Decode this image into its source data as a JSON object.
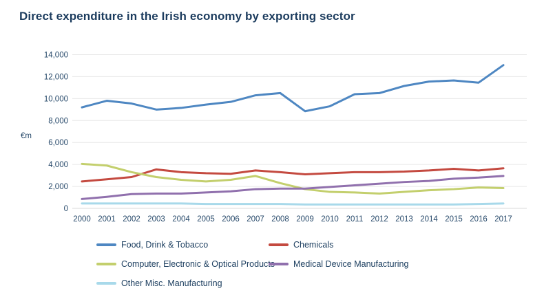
{
  "title": "Direct expenditure in the Irish economy by exporting sector",
  "chart_data": {
    "type": "line",
    "title": "Direct expenditure in the Irish economy by exporting sector",
    "xlabel": "",
    "ylabel": "€m",
    "x": [
      2000,
      2001,
      2002,
      2003,
      2004,
      2005,
      2006,
      2007,
      2008,
      2009,
      2010,
      2011,
      2012,
      2013,
      2014,
      2015,
      2016,
      2017
    ],
    "series": [
      {
        "name": "Food, Drink & Tobacco",
        "color": "#4e87c2",
        "values": [
          9200,
          9800,
          9550,
          9000,
          9150,
          9450,
          9700,
          10300,
          10500,
          8850,
          9300,
          10400,
          10500,
          11150,
          11550,
          11650,
          11450,
          13050
        ]
      },
      {
        "name": "Chemicals",
        "color": "#c44a40",
        "values": [
          2450,
          2650,
          2850,
          3550,
          3300,
          3200,
          3150,
          3450,
          3300,
          3100,
          3200,
          3300,
          3300,
          3350,
          3450,
          3600,
          3450,
          3650
        ]
      },
      {
        "name": "Computer, Electronic & Optical Products",
        "color": "#c3cf6d",
        "values": [
          4050,
          3900,
          3300,
          2850,
          2600,
          2450,
          2600,
          2950,
          2300,
          1750,
          1500,
          1450,
          1350,
          1500,
          1650,
          1750,
          1900,
          1850
        ]
      },
      {
        "name": "Medical Device Manufacturing",
        "color": "#9070ad",
        "values": [
          850,
          1050,
          1300,
          1350,
          1350,
          1450,
          1550,
          1750,
          1800,
          1800,
          1950,
          2100,
          2250,
          2400,
          2500,
          2700,
          2800,
          2950
        ]
      },
      {
        "name": "Other Misc. Manufacturing",
        "color": "#a8d9ea",
        "values": [
          450,
          450,
          450,
          450,
          450,
          400,
          400,
          400,
          400,
          350,
          350,
          350,
          350,
          350,
          350,
          350,
          400,
          450
        ]
      }
    ],
    "ylim": [
      0,
      14000
    ],
    "yticks": [
      0,
      2000,
      4000,
      6000,
      8000,
      10000,
      12000,
      14000
    ],
    "ytick_labels": [
      "0",
      "2,000",
      "4,000",
      "6,000",
      "8,000",
      "10,000",
      "12,000",
      "14,000"
    ],
    "grid": "horizontal",
    "legend_position": "bottom"
  },
  "colors": {
    "title_text": "#1c3c5e",
    "axis_text": "#27496a",
    "gridline": "#e7e7e7",
    "axis_line": "#d9d9d9",
    "background": "#ffffff"
  }
}
